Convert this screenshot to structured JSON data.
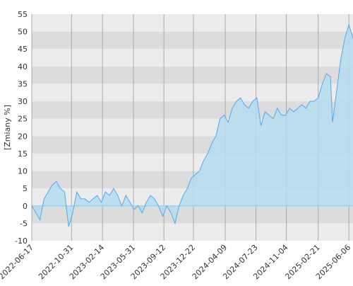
{
  "chart_data": {
    "type": "area",
    "y_label": "[Zmiany %]",
    "x": [
      "2022-06-17",
      "2022-07-01",
      "2022-07-15",
      "2022-07-29",
      "2022-08-12",
      "2022-08-26",
      "2022-09-09",
      "2022-09-23",
      "2022-10-07",
      "2022-10-21",
      "2022-11-04",
      "2022-11-18",
      "2022-12-02",
      "2022-12-16",
      "2022-12-30",
      "2023-01-13",
      "2023-01-27",
      "2023-02-10",
      "2023-02-24",
      "2023-03-10",
      "2023-03-24",
      "2023-04-07",
      "2023-04-21",
      "2023-05-05",
      "2023-05-19",
      "2023-06-02",
      "2023-06-16",
      "2023-06-30",
      "2023-07-14",
      "2023-07-28",
      "2023-08-11",
      "2023-08-25",
      "2023-09-08",
      "2023-09-22",
      "2023-10-06",
      "2023-10-20",
      "2023-11-03",
      "2023-11-17",
      "2023-12-01",
      "2023-12-15",
      "2023-12-29",
      "2024-01-12",
      "2024-01-26",
      "2024-02-09",
      "2024-02-23",
      "2024-03-08",
      "2024-03-22",
      "2024-04-05",
      "2024-04-19",
      "2024-05-03",
      "2024-05-17",
      "2024-05-31",
      "2024-06-14",
      "2024-06-28",
      "2024-07-12",
      "2024-07-26",
      "2024-08-09",
      "2024-08-23",
      "2024-09-06",
      "2024-09-20",
      "2024-10-04",
      "2024-10-18",
      "2024-11-01",
      "2024-11-15",
      "2024-11-29",
      "2024-12-13",
      "2024-12-27",
      "2025-01-10",
      "2025-01-24",
      "2025-02-07",
      "2025-02-21",
      "2025-03-07",
      "2025-03-21",
      "2025-04-04",
      "2025-04-11",
      "2025-04-25",
      "2025-05-09",
      "2025-05-23",
      "2025-06-06",
      "2025-06-20"
    ],
    "values": [
      0,
      -2,
      -4,
      2,
      4,
      6,
      7,
      5,
      4,
      -6,
      -2,
      4,
      2,
      2,
      1,
      2,
      3,
      1,
      4,
      3,
      5,
      3,
      0,
      3,
      1,
      -1,
      0,
      -2,
      1,
      3,
      2,
      0,
      -3,
      0,
      -2,
      -5,
      0,
      3,
      5,
      8,
      9,
      10,
      13,
      15,
      18,
      20,
      25,
      26,
      24,
      28,
      30,
      31,
      29,
      28,
      30,
      31,
      23,
      27,
      26,
      25,
      28,
      26,
      26,
      28,
      27,
      28,
      29,
      28,
      30,
      30,
      31,
      35,
      38,
      37,
      24,
      33,
      42,
      48,
      52,
      48
    ],
    "xlim": [
      "2022-06-17",
      "2025-06-20"
    ],
    "xticks": [
      "2022-06-17",
      "2022-10-31",
      "2023-02-14",
      "2023-05-31",
      "2023-09-12",
      "2023-12-22",
      "2024-04-09",
      "2024-07-23",
      "2024-11-04",
      "2025-02-21",
      "2025-06-06"
    ],
    "ylim": [
      -10,
      55
    ],
    "yticks": [
      -10,
      -5,
      0,
      5,
      10,
      15,
      20,
      25,
      30,
      35,
      40,
      45,
      50,
      55
    ],
    "line_color": "#55a8f0",
    "fill_color": "#b5dcef"
  }
}
